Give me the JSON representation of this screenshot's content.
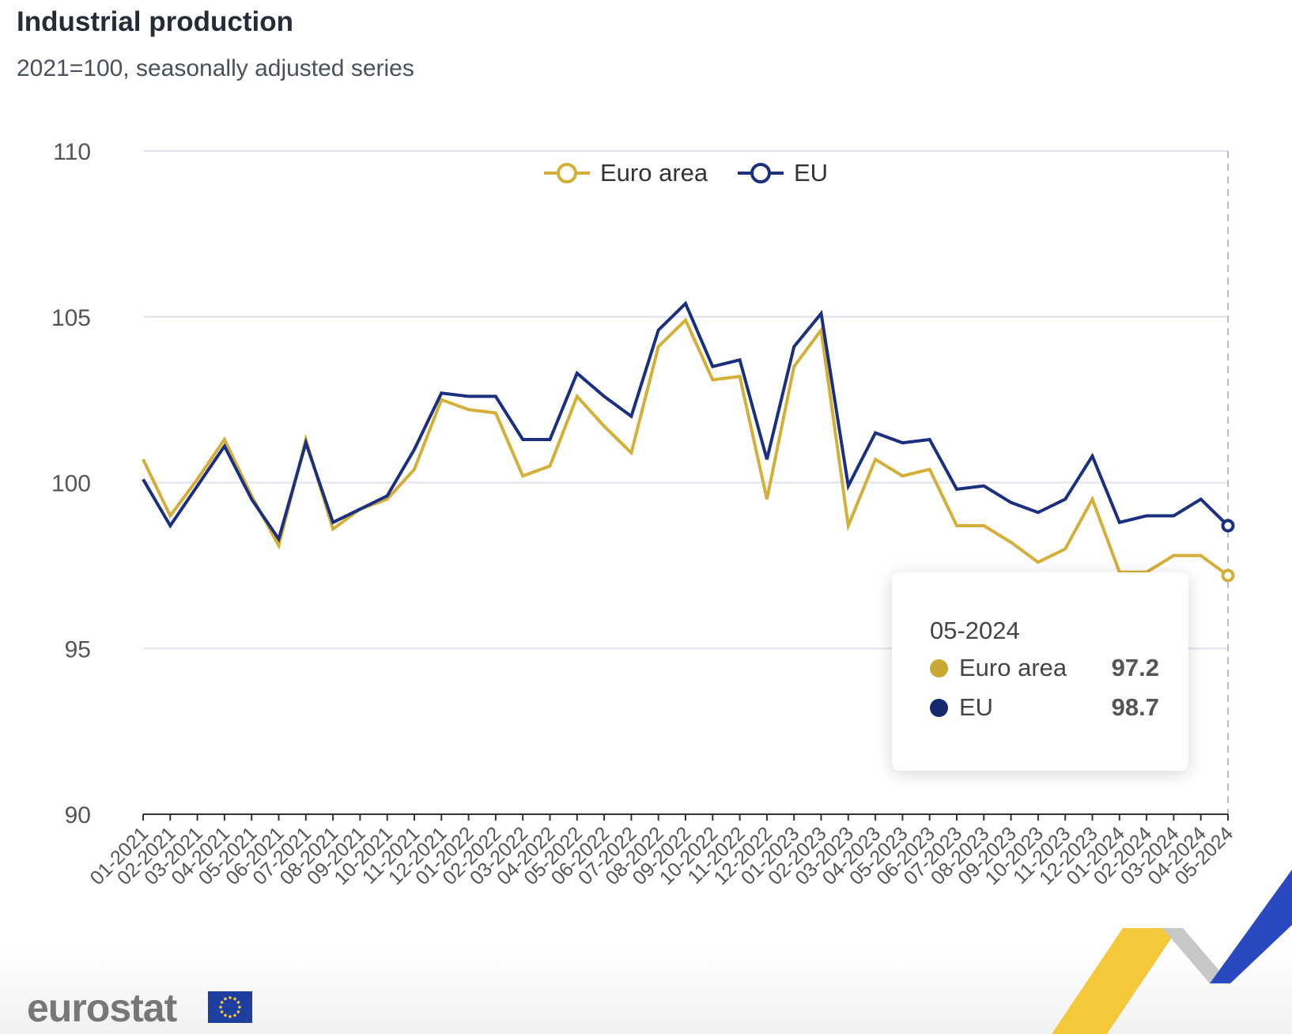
{
  "chart_data": {
    "type": "line",
    "title": "Industrial production",
    "subtitle": "2021=100, seasonally adjusted series",
    "xlabel": "",
    "ylabel": "",
    "ylim": [
      90,
      110
    ],
    "yticks": [
      90,
      95,
      100,
      105,
      110
    ],
    "grid": true,
    "legend_position": "top-center",
    "categories": [
      "01-2021",
      "02-2021",
      "03-2021",
      "04-2021",
      "05-2021",
      "06-2021",
      "07-2021",
      "08-2021",
      "09-2021",
      "10-2021",
      "11-2021",
      "12-2021",
      "01-2022",
      "02-2022",
      "03-2022",
      "04-2022",
      "05-2022",
      "06-2022",
      "07-2022",
      "08-2022",
      "09-2022",
      "10-2022",
      "11-2022",
      "12-2022",
      "01-2023",
      "02-2023",
      "03-2023",
      "04-2023",
      "05-2023",
      "06-2023",
      "07-2023",
      "08-2023",
      "09-2023",
      "10-2023",
      "11-2023",
      "12-2023",
      "01-2024",
      "02-2024",
      "03-2024",
      "04-2024",
      "05-2024"
    ],
    "series": [
      {
        "name": "Euro area",
        "color": "#d4af37",
        "values": [
          100.7,
          99.0,
          100.1,
          101.3,
          99.6,
          98.1,
          101.3,
          98.6,
          99.2,
          99.5,
          100.4,
          102.5,
          102.2,
          102.1,
          100.2,
          100.5,
          102.6,
          101.7,
          100.9,
          104.1,
          104.9,
          103.1,
          103.2,
          99.5,
          103.5,
          104.6,
          98.7,
          100.7,
          100.2,
          100.4,
          98.7,
          98.7,
          98.2,
          97.6,
          98.0,
          99.5,
          97.3,
          97.3,
          97.8,
          97.8,
          97.2
        ]
      },
      {
        "name": "EU",
        "color": "#1a2f80",
        "values": [
          100.1,
          98.7,
          99.9,
          101.1,
          99.5,
          98.3,
          101.2,
          98.8,
          99.2,
          99.6,
          101.0,
          102.7,
          102.6,
          102.6,
          101.3,
          101.3,
          103.3,
          102.6,
          102.0,
          104.6,
          105.4,
          103.5,
          103.7,
          100.7,
          104.1,
          105.1,
          99.9,
          101.5,
          101.2,
          101.3,
          99.8,
          99.9,
          99.4,
          99.1,
          99.5,
          100.8,
          98.8,
          99.0,
          99.0,
          99.5,
          98.7
        ]
      }
    ]
  },
  "tooltip": {
    "date": "05-2024",
    "rows": [
      {
        "label": "Euro area",
        "value": "97.2",
        "color": "#c9a934"
      },
      {
        "label": "EU",
        "value": "98.7",
        "color": "#14296e"
      }
    ]
  },
  "branding": {
    "logo_text": "eurostat"
  }
}
